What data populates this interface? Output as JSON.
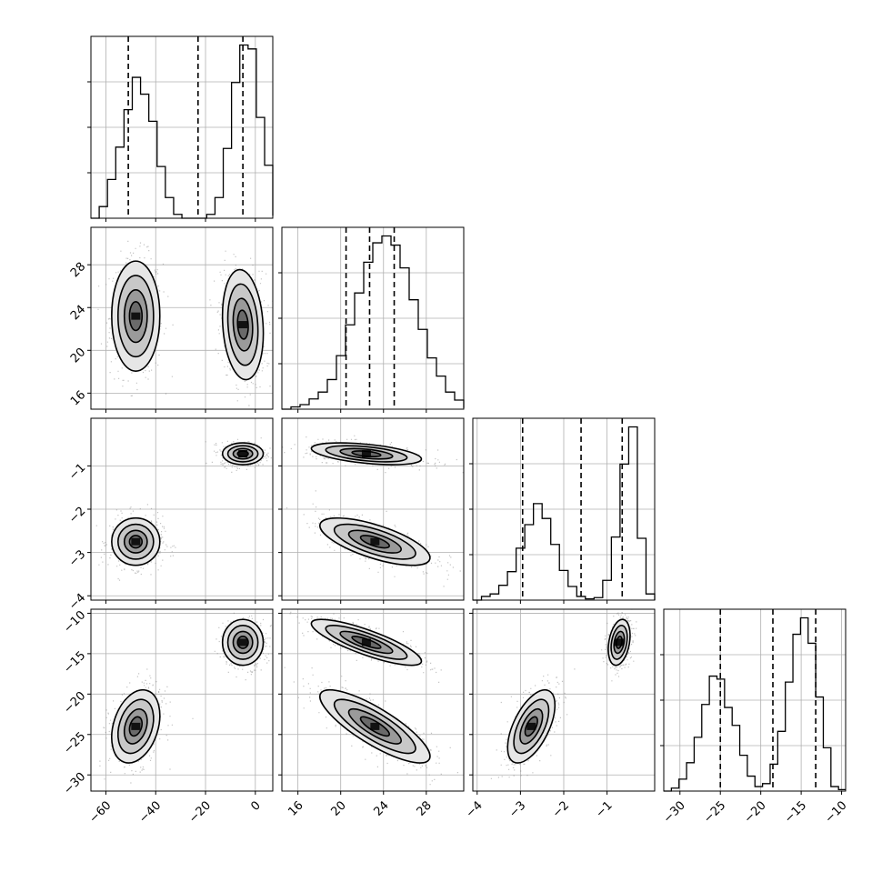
{
  "chart_data": {
    "type": "corner",
    "grid": true,
    "hist_style": "step",
    "variables": [
      {
        "id": "p0",
        "range": [
          -66,
          7
        ],
        "ticks": [
          -60,
          -40,
          -20,
          0
        ],
        "tick_labels": [
          "−60",
          "−40",
          "−20",
          "0"
        ],
        "quantiles": [
          -51,
          -23,
          -5
        ],
        "hist": {
          "bins_start": -66,
          "bin_width": 3.32,
          "counts": [
            0,
            0.9,
            3.0,
            5.5,
            8.4,
            10.9,
            9.6,
            7.5,
            4.0,
            1.6,
            0.3,
            0,
            0,
            0,
            0.3,
            1.6,
            5.4,
            10.5,
            13.4,
            13.1,
            7.8,
            4.1,
            0.2
          ]
        }
      },
      {
        "id": "p1",
        "range": [
          14.5,
          31.5
        ],
        "ticks": [
          16,
          20,
          24,
          28
        ],
        "tick_labels": [
          "16",
          "20",
          "24",
          "28"
        ],
        "quantiles": [
          20.5,
          22.7,
          25.0
        ],
        "hist": {
          "bins_start": 14.5,
          "bin_width": 0.85,
          "counts": [
            0,
            0.2,
            0.4,
            0.9,
            1.5,
            2.6,
            4.7,
            7.4,
            10.2,
            12.9,
            14.6,
            15.2,
            14.4,
            12.4,
            9.6,
            7.0,
            4.5,
            2.9,
            1.5,
            0.8,
            0.3,
            0.1
          ]
        }
      },
      {
        "id": "p2",
        "range": [
          -4.1,
          0.1
        ],
        "ticks": [
          -4,
          -3,
          -2,
          -1
        ],
        "tick_labels": [
          "−4",
          "−3",
          "−2",
          "−1"
        ],
        "quantiles": [
          -2.95,
          -1.6,
          -0.65
        ],
        "hist": {
          "bins_start": -4.1,
          "bin_width": 0.2,
          "counts": [
            0,
            0.3,
            0.5,
            1.2,
            2.3,
            4.2,
            6.1,
            7.8,
            6.6,
            4.5,
            2.4,
            1.1,
            0.3,
            0.1,
            0.2,
            1.6,
            5.1,
            11.0,
            14.0,
            5.0,
            0.5,
            0
          ]
        }
      },
      {
        "id": "p3",
        "range": [
          -32,
          -9.5
        ],
        "ticks": [
          -30,
          -25,
          -20,
          -15,
          -10
        ],
        "tick_labels": [
          "−30",
          "−25",
          "−20",
          "−15",
          "−10"
        ],
        "quantiles": [
          -25,
          -18.5,
          -13.2
        ],
        "hist": {
          "bins_start": -32,
          "bin_width": 0.94,
          "counts": [
            0,
            0.2,
            0.8,
            1.9,
            3.6,
            5.8,
            7.7,
            7.5,
            5.6,
            4.4,
            2.4,
            1.0,
            0.3,
            0.5,
            1.8,
            4.0,
            7.3,
            10.5,
            11.6,
            9.9,
            6.3,
            2.9,
            0.3,
            0.1
          ]
        }
      }
    ],
    "modes": [
      {
        "weight": 0.5,
        "mean": [
          -48,
          23.2,
          -2.75,
          -24
        ],
        "sd": [
          4.6,
          2.45,
          0.26,
          2.15
        ],
        "corr": {
          "0-1": 0.0,
          "0-2": 0.0,
          "0-3": 0.3,
          "1-2": -0.68,
          "1-3": -0.82,
          "2-3": 0.58
        }
      },
      {
        "weight": 0.5,
        "mean": [
          -5,
          22.4,
          -0.72,
          -13.6
        ],
        "sd": [
          3.9,
          2.45,
          0.12,
          1.35
        ],
        "corr": {
          "0-1": -0.15,
          "0-2": 0.0,
          "0-3": 0.0,
          "1-2": -0.48,
          "1-3": -0.82,
          "2-3": 0.3
        }
      }
    ],
    "contour_levels_sigma": [
      0.55,
      1.0,
      1.55,
      2.1
    ]
  }
}
